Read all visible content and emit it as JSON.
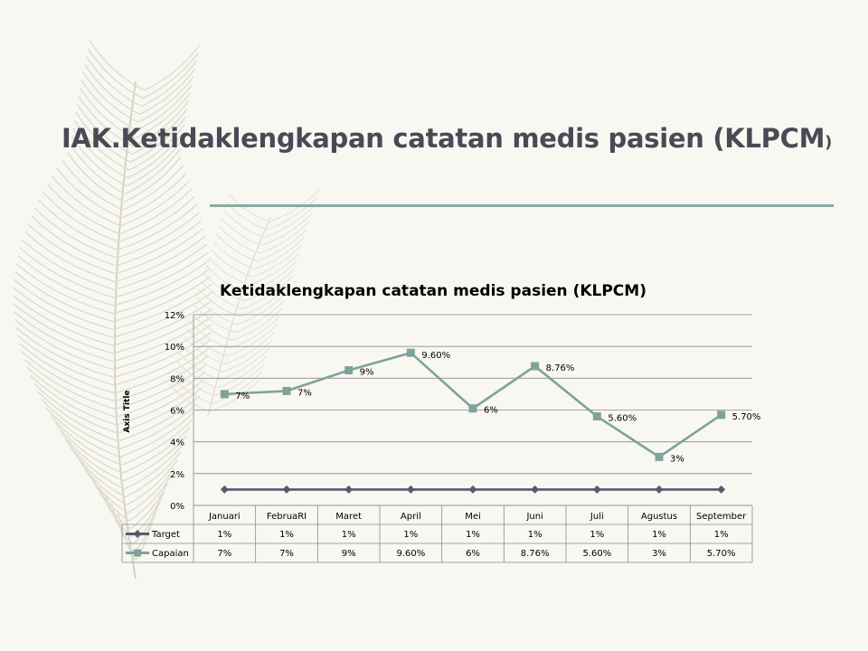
{
  "slide": {
    "title": "IAK.Ketidaklengkapan catatan medis pasien (KLPCM",
    "title_close": ")"
  },
  "chart_data": {
    "type": "line",
    "title": "Ketidaklengkapan catatan medis pasien (KLPCM)",
    "ylabel": "Axis Title",
    "xlabel": "",
    "ylim": [
      0,
      12
    ],
    "yticks": [
      "0%",
      "2%",
      "4%",
      "6%",
      "8%",
      "10%",
      "12%"
    ],
    "categories": [
      "Januari",
      "FebruaRI",
      "Maret",
      "April",
      "Mei",
      "Juni",
      "Juli",
      "Agustus",
      "September"
    ],
    "series": [
      {
        "name": "Target",
        "values": [
          1,
          1,
          1,
          1,
          1,
          1,
          1,
          1,
          1
        ],
        "labels": [
          "1%",
          "1%",
          "1%",
          "1%",
          "1%",
          "1%",
          "1%",
          "1%",
          "1%"
        ],
        "color": "#565b6e",
        "marker": "diamond"
      },
      {
        "name": "Capaian",
        "values": [
          7,
          7.2,
          8.5,
          9.6,
          6.1,
          8.76,
          5.6,
          3.05,
          5.7
        ],
        "labels": [
          "7%",
          "7%",
          "9%",
          "9.60%",
          "6%",
          "8.76%",
          "5.60%",
          "3%",
          "5.70%"
        ],
        "color": "#7fa29c",
        "marker": "square"
      }
    ],
    "point_labels": {
      "series": "Capaian"
    },
    "grid": true,
    "legend": "data-table"
  }
}
